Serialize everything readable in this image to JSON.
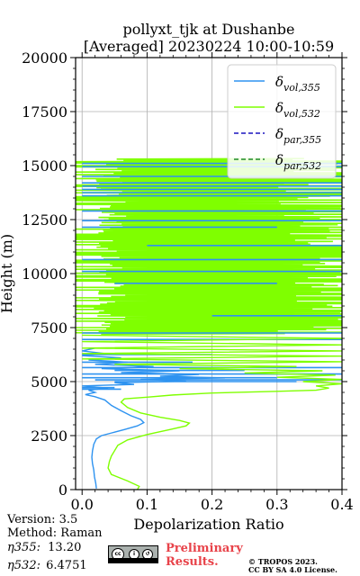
{
  "chart_data": {
    "type": "line",
    "title": "pollyxt_tjk at Dushanbe",
    "subtitle": "[Averaged] 20230224 10:00-10:59",
    "xlabel": "Depolarization Ratio",
    "ylabel": "Height (m)",
    "xlim": [
      -0.01,
      0.4
    ],
    "ylim": [
      0,
      20000
    ],
    "xticks": [
      "0.0",
      "0.1",
      "0.2",
      "0.3",
      "0.4"
    ],
    "yticks": [
      "0",
      "2500",
      "5000",
      "7500",
      "10000",
      "12500",
      "15000",
      "17500",
      "20000"
    ],
    "xtick_values": [
      0,
      0.1,
      0.2,
      0.3,
      0.4
    ],
    "ytick_values": [
      0,
      2500,
      5000,
      7500,
      10000,
      12500,
      15000,
      17500,
      20000
    ],
    "grid": true,
    "legend_position": "top-right",
    "series": [
      {
        "name": "δ_{vol,355}",
        "color": "#2e93f0",
        "dash": "solid",
        "points": [
          [
            0.022,
            50
          ],
          [
            0.021,
            300
          ],
          [
            0.019,
            600
          ],
          [
            0.018,
            900
          ],
          [
            0.016,
            1200
          ],
          [
            0.015,
            1500
          ],
          [
            0.016,
            1800
          ],
          [
            0.018,
            2100
          ],
          [
            0.022,
            2350
          ],
          [
            0.03,
            2500
          ],
          [
            0.045,
            2620
          ],
          [
            0.065,
            2780
          ],
          [
            0.085,
            2950
          ],
          [
            0.095,
            3100
          ],
          [
            0.09,
            3250
          ],
          [
            0.075,
            3420
          ],
          [
            0.06,
            3650
          ],
          [
            0.045,
            3900
          ],
          [
            0.035,
            4150
          ],
          [
            0.02,
            4300
          ],
          [
            0.005,
            4400
          ],
          [
            0.02,
            4500
          ],
          [
            0.01,
            4600
          ],
          [
            0.04,
            4700
          ],
          [
            0.0,
            4800
          ],
          [
            0.08,
            4870
          ],
          [
            0.05,
            4950
          ],
          [
            0.16,
            5020
          ],
          [
            0.09,
            5100
          ],
          [
            0.22,
            5170
          ],
          [
            0.12,
            5250
          ],
          [
            0.18,
            5330
          ],
          [
            0.06,
            5420
          ],
          [
            0.15,
            5500
          ],
          [
            0.03,
            5600
          ],
          [
            0.11,
            5700
          ],
          [
            0.02,
            5800
          ],
          [
            0.07,
            5900
          ],
          [
            0.01,
            6000
          ],
          [
            0.06,
            6100
          ],
          [
            0.0,
            6200
          ],
          [
            0.035,
            6300
          ],
          [
            0.0,
            6420
          ],
          [
            0.02,
            6550
          ]
        ]
      },
      {
        "name": "δ_{vol,532}",
        "color": "#7fff00",
        "dash": "solid",
        "points": [
          [
            0.085,
            0
          ],
          [
            0.088,
            150
          ],
          [
            0.07,
            400
          ],
          [
            0.045,
            700
          ],
          [
            0.04,
            1000
          ],
          [
            0.042,
            1300
          ],
          [
            0.045,
            1550
          ],
          [
            0.05,
            1800
          ],
          [
            0.055,
            2050
          ],
          [
            0.07,
            2300
          ],
          [
            0.1,
            2550
          ],
          [
            0.135,
            2780
          ],
          [
            0.16,
            2950
          ],
          [
            0.165,
            3080
          ],
          [
            0.15,
            3200
          ],
          [
            0.12,
            3350
          ],
          [
            0.09,
            3550
          ],
          [
            0.07,
            3800
          ],
          [
            0.06,
            4050
          ],
          [
            0.065,
            4200
          ],
          [
            0.1,
            4280
          ],
          [
            0.14,
            4380
          ],
          [
            0.2,
            4470
          ],
          [
            0.3,
            4550
          ],
          [
            0.36,
            4600
          ],
          [
            0.38,
            4700
          ],
          [
            0.36,
            4800
          ],
          [
            0.4,
            4900
          ],
          [
            0.34,
            5000
          ],
          [
            0.4,
            5100
          ],
          [
            0.3,
            5200
          ],
          [
            0.39,
            5300
          ],
          [
            0.25,
            5400
          ],
          [
            0.37,
            5500
          ],
          [
            0.15,
            5600
          ],
          [
            0.33,
            5700
          ],
          [
            0.05,
            5800
          ],
          [
            0.4,
            5920
          ],
          [
            0.0,
            6050
          ],
          [
            0.4,
            6180
          ],
          [
            0.0,
            6300
          ],
          [
            0.4,
            6420
          ],
          [
            0.0,
            6550
          ],
          [
            0.4,
            6700
          ],
          [
            0.0,
            6850
          ],
          [
            0.4,
            7000
          ],
          [
            0.0,
            7150
          ]
        ]
      },
      {
        "name": "δ_{par,355}",
        "color": "#1a14bf",
        "dash": "dashed",
        "points": []
      },
      {
        "name": "δ_{par,532}",
        "color": "#1f8a2a",
        "dash": "dashed",
        "points": []
      }
    ],
    "noise_bands": {
      "vol355_heights": [
        4650,
        4720,
        5000,
        5080,
        5180,
        5350,
        5520,
        5650,
        5900,
        6250,
        6950,
        7250,
        8050,
        9550,
        10100,
        10650,
        11300,
        12150,
        12450,
        12900,
        13600,
        13750,
        13900,
        14050,
        14200,
        14500,
        14950,
        15100
      ],
      "vol355_extent": [
        [
          0.0,
          0.06
        ],
        [
          0.0,
          0.05
        ],
        [
          0.05,
          0.33
        ],
        [
          0.02,
          0.4
        ],
        [
          0.0,
          0.3
        ],
        [
          0.0,
          0.4
        ],
        [
          0.05,
          0.25
        ],
        [
          0.0,
          0.4
        ],
        [
          0.0,
          0.17
        ],
        [
          0.0,
          0.2
        ],
        [
          0.0,
          0.4
        ],
        [
          0.0,
          0.4
        ],
        [
          0.2,
          0.4
        ],
        [
          0.05,
          0.3
        ],
        [
          0.0,
          0.4
        ],
        [
          0.0,
          0.4
        ],
        [
          0.1,
          0.4
        ],
        [
          0.0,
          0.3
        ],
        [
          0.0,
          0.4
        ],
        [
          0.0,
          0.4
        ],
        [
          0.0,
          0.4
        ],
        [
          0.0,
          0.4
        ],
        [
          0.0,
          0.4
        ],
        [
          0.0,
          0.4
        ],
        [
          0.0,
          0.4
        ],
        [
          0.0,
          0.4
        ],
        [
          0.0,
          0.4
        ],
        [
          0.0,
          0.4
        ]
      ],
      "vol532_from": 7200,
      "vol532_to": 15300
    }
  },
  "info": {
    "version": "Version: 3.5",
    "method": "Method: Raman",
    "eta355_label": "η355:",
    "eta355_value": "13.20",
    "eta532_label": "η532:",
    "eta532_value": "6.4751"
  },
  "footer": {
    "preliminary_line1": "Preliminary",
    "preliminary_line2": "Results.",
    "copyright_line1": "© TROPOS 2023.",
    "copyright_line2": "CC BY SA 4.0 License."
  }
}
